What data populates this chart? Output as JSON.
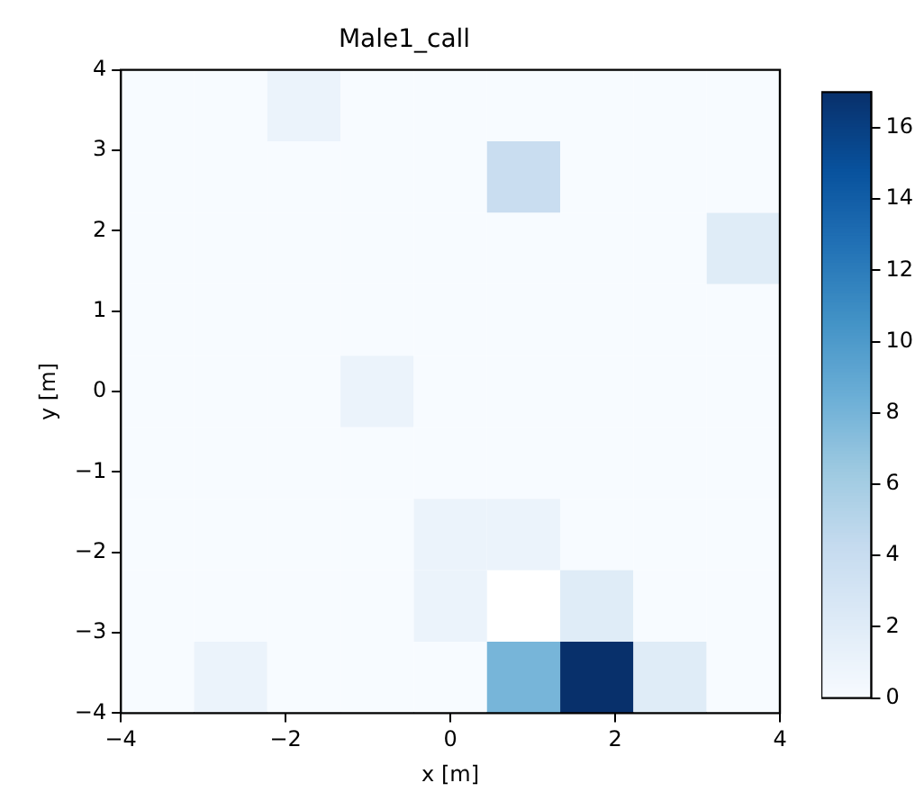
{
  "chart_data": {
    "type": "heatmap",
    "title": "Male1_call",
    "xlabel": "x [m]",
    "ylabel": "y [m]",
    "xlim": [
      -4,
      4
    ],
    "ylim": [
      -4,
      4
    ],
    "xticks": [
      -4,
      -2,
      0,
      2,
      4
    ],
    "yticks": [
      -4,
      -3,
      -2,
      -1,
      0,
      1,
      2,
      3,
      4
    ],
    "cells": [
      [
        0,
        0,
        1,
        0,
        0,
        0,
        0,
        0,
        0
      ],
      [
        0,
        0,
        0,
        0,
        0,
        4,
        0,
        0,
        0
      ],
      [
        0,
        0,
        0,
        0,
        0,
        0,
        0,
        0,
        2
      ],
      [
        0,
        0,
        0,
        0,
        0,
        0,
        0,
        0,
        0
      ],
      [
        0,
        0,
        0,
        1,
        0,
        0,
        0,
        0,
        0
      ],
      [
        0,
        0,
        0,
        0,
        0,
        0,
        0,
        0,
        0
      ],
      [
        0,
        0,
        0,
        0,
        1,
        1,
        0,
        0,
        0
      ],
      [
        0,
        0,
        0,
        0,
        1,
        null,
        2,
        0,
        0
      ],
      [
        0,
        1,
        0,
        0,
        0,
        8,
        17,
        2,
        0
      ]
    ],
    "clim": [
      0,
      17
    ],
    "cticks": [
      0,
      2,
      4,
      6,
      8,
      10,
      12,
      14,
      16
    ],
    "grid": false
  }
}
